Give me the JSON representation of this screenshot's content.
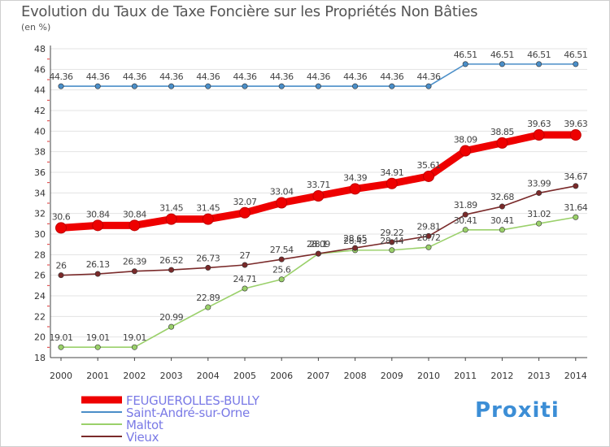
{
  "chart_data": {
    "type": "line",
    "title": "Evolution du Taux de Taxe Foncière sur les Propriétés Non Bâties",
    "ylabel": "(en %)",
    "xlabel": "",
    "ylim": [
      18,
      48
    ],
    "yticks": [
      "18",
      "20",
      "22",
      "24",
      "26",
      "28",
      "30",
      "32",
      "34",
      "36",
      "38",
      "40",
      "42",
      "44",
      "46",
      "48"
    ],
    "categories": [
      "2000",
      "2001",
      "2002",
      "2003",
      "2004",
      "2005",
      "2006",
      "2007",
      "2008",
      "2009",
      "2010",
      "2011",
      "2012",
      "2013",
      "2014"
    ],
    "series": [
      {
        "name": "FEUGUEROLLES-BULLY",
        "color": "#ee0000",
        "values": [
          30.6,
          30.84,
          30.84,
          31.45,
          31.45,
          32.07,
          33.04,
          33.71,
          34.39,
          34.91,
          35.61,
          38.09,
          38.85,
          39.63,
          39.63
        ],
        "labels": [
          "30.6",
          "30.84",
          "30.84",
          "31.45",
          "31.45",
          "32.07",
          "33.04",
          "33.71",
          "34.39",
          "34.91",
          "35.61",
          "38.09",
          "38.85",
          "39.63",
          "39.63"
        ]
      },
      {
        "name": "Saint-André-sur-Orne",
        "color": "#4a8ec8",
        "values": [
          44.36,
          44.36,
          44.36,
          44.36,
          44.36,
          44.36,
          44.36,
          44.36,
          44.36,
          44.36,
          44.36,
          46.51,
          46.51,
          46.51,
          46.51
        ],
        "labels": [
          "44.36",
          "44.36",
          "44.36",
          "44.36",
          "44.36",
          "44.36",
          "44.36",
          "44.36",
          "44.36",
          "44.36",
          "44.36",
          "46.51",
          "46.51",
          "46.51",
          "46.51"
        ]
      },
      {
        "name": "Maltot",
        "color": "#9ad06a",
        "values": [
          19.01,
          19.01,
          19.01,
          20.99,
          22.89,
          24.71,
          25.6,
          28.09,
          28.43,
          28.44,
          28.72,
          30.41,
          30.41,
          31.02,
          31.64
        ],
        "labels": [
          "19.01",
          "19.01",
          "19.01",
          "20.99",
          "22.89",
          "24.71",
          "25.6",
          "28.09",
          "28.43",
          "28.44",
          "28.72",
          "30.41",
          "30.41",
          "31.02",
          "31.64"
        ]
      },
      {
        "name": "Vieux",
        "color": "#7a2a2a",
        "values": [
          26,
          26.13,
          26.39,
          26.52,
          26.73,
          27,
          27.54,
          28.1,
          28.65,
          29.22,
          29.81,
          31.89,
          32.68,
          33.99,
          34.67
        ],
        "labels": [
          "26",
          "26.13",
          "26.39",
          "26.52",
          "26.73",
          "27",
          "27.54",
          "28.1",
          "28.65",
          "29.22",
          "29.81",
          "31.89",
          "32.68",
          "33.99",
          "34.67"
        ]
      }
    ],
    "legend_position": "bottom-left"
  },
  "logo": {
    "text": "Proxiti"
  }
}
